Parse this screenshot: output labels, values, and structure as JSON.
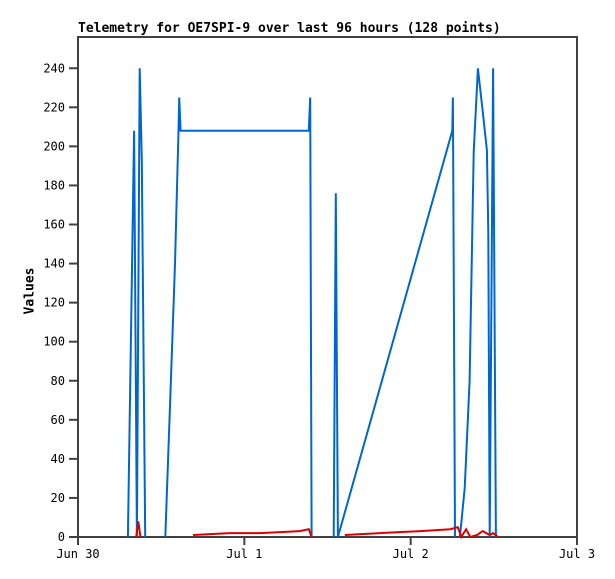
{
  "title": "Telemetry for OE7SPI-9 over last 96 hours (128 points)",
  "chart_data": {
    "type": "line",
    "title": "Telemetry for OE7SPI-9 over last 96 hours (128 points)",
    "xlabel": "",
    "ylabel": "Values",
    "grid": false,
    "legend": "none",
    "background": "#ffffff",
    "colors": {
      "axis": "#404040",
      "text": "#000000"
    },
    "xlim": [
      0,
      72
    ],
    "ylim": [
      0,
      256
    ],
    "x_unit": "hours since Jun 30 00:00",
    "y_ticks": [
      0,
      20,
      40,
      60,
      80,
      100,
      120,
      140,
      160,
      180,
      200,
      220,
      240
    ],
    "x_ticks": [
      {
        "h": 0,
        "label": "Jun 30"
      },
      {
        "h": 24,
        "label": "Jul 1"
      },
      {
        "h": 48,
        "label": "Jul 2"
      },
      {
        "h": 72,
        "label": "Jul 3"
      }
    ],
    "series": [
      {
        "name": "blue-series",
        "color": "#0066CC",
        "width": 2,
        "segments": [
          [
            [
              7.2,
              0
            ],
            [
              8.1,
              208
            ],
            [
              8.5,
              0
            ],
            [
              8.9,
              240
            ],
            [
              9.2,
              193
            ],
            [
              9.7,
              0
            ]
          ],
          [
            [
              12.6,
              0
            ],
            [
              13.3,
              70
            ],
            [
              14.0,
              140
            ],
            [
              14.5,
              208
            ],
            [
              14.6,
              225
            ],
            [
              14.8,
              208
            ],
            [
              33.3,
              208
            ],
            [
              33.5,
              225
            ],
            [
              33.7,
              0
            ]
          ],
          [
            [
              36.9,
              0
            ],
            [
              37.2,
              176
            ],
            [
              37.5,
              0
            ],
            [
              54.0,
              208
            ],
            [
              54.1,
              225
            ],
            [
              54.4,
              0
            ]
          ],
          [
            [
              55.1,
              0
            ],
            [
              55.8,
              25
            ],
            [
              56.5,
              80
            ],
            [
              57.1,
              197
            ],
            [
              57.7,
              240
            ],
            [
              58.4,
              218
            ],
            [
              59.0,
              198
            ],
            [
              59.2,
              156
            ],
            [
              59.4,
              0
            ],
            [
              59.9,
              240
            ],
            [
              60.3,
              0
            ]
          ]
        ]
      },
      {
        "name": "red-series",
        "color": "#DD0000",
        "width": 2,
        "segments": [
          [
            [
              8.4,
              0
            ],
            [
              8.7,
              8
            ],
            [
              9.0,
              0
            ]
          ],
          [
            [
              16.6,
              1
            ],
            [
              21.9,
              2
            ],
            [
              26.3,
              2
            ],
            [
              32.0,
              3
            ],
            [
              33.3,
              4
            ],
            [
              33.7,
              0
            ]
          ],
          [
            [
              38.5,
              1
            ],
            [
              43.6,
              2
            ],
            [
              49.4,
              3
            ],
            [
              53.7,
              4
            ],
            [
              54.8,
              5
            ],
            [
              55.3,
              0
            ],
            [
              56.0,
              4
            ],
            [
              56.6,
              0
            ],
            [
              57.6,
              1
            ],
            [
              58.4,
              3
            ],
            [
              59.4,
              1
            ],
            [
              59.9,
              2
            ],
            [
              60.6,
              0
            ]
          ]
        ]
      }
    ]
  }
}
